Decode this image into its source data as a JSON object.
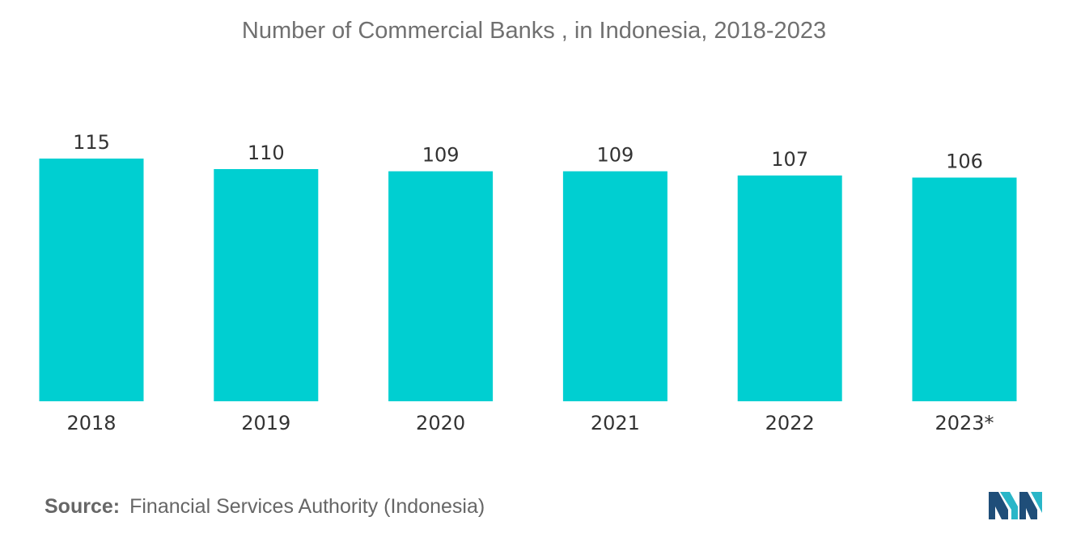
{
  "chart_data": {
    "type": "bar",
    "title": "Number of Commercial Banks , in Indonesia, 2018-2023",
    "categories": [
      "2018",
      "2019",
      "2020",
      "2021",
      "2022",
      "2023*"
    ],
    "values": [
      115,
      110,
      109,
      109,
      107,
      106
    ],
    "data_labels": [
      "115",
      "110",
      "109",
      "109",
      "107",
      "106"
    ],
    "xlabel": "",
    "ylabel": "",
    "ylim": [
      0,
      115
    ],
    "grid": false,
    "bar_color": "#00cfd1"
  },
  "source": {
    "label": "Source:",
    "text": "Financial Services Authority (Indonesia)"
  },
  "logo": {
    "icon": "mordor-intelligence-logo-icon",
    "colors": [
      "#1f4e79",
      "#29b6c8"
    ]
  }
}
